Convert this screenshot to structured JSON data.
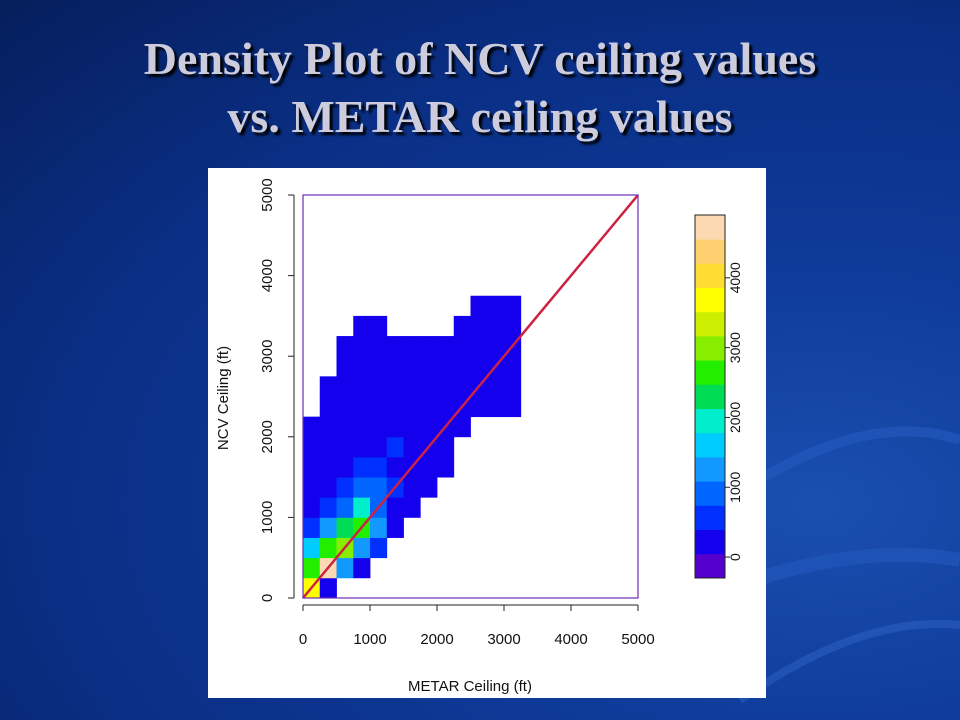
{
  "slide": {
    "title_line1": "Density Plot of NCV ceiling values",
    "title_line2": "vs. METAR ceiling values"
  },
  "chart_data": {
    "type": "heatmap",
    "xlabel": "METAR Ceiling (ft)",
    "ylabel": "NCV Ceiling (ft)",
    "xlim": [
      0,
      5000
    ],
    "ylim": [
      0,
      5000
    ],
    "x_ticks": [
      "0",
      "1000",
      "2000",
      "3000",
      "4000",
      "5000"
    ],
    "y_ticks": [
      "0",
      "1000",
      "2000",
      "3000",
      "4000",
      "5000"
    ],
    "bin_size": 250,
    "reference_line": {
      "from": [
        0,
        0
      ],
      "to": [
        5000,
        5000
      ],
      "color": "#cc2244"
    },
    "colorbar": {
      "ticks": [
        "0",
        "1000",
        "2000",
        "3000",
        "4000"
      ],
      "range": [
        -300,
        4900
      ],
      "colors": [
        "#5500cc",
        "#1500ee",
        "#0030ff",
        "#0066ff",
        "#1199ff",
        "#00ccff",
        "#00eecc",
        "#00dd55",
        "#22ee00",
        "#88ee00",
        "#ccee00",
        "#ffff00",
        "#ffdd33",
        "#ffd070",
        "#fcd9b0"
      ]
    },
    "cells": [
      {
        "x": 0,
        "y": 0,
        "v": 3800
      },
      {
        "x": 250,
        "y": 0,
        "v": 150
      },
      {
        "x": 0,
        "y": 250,
        "v": 2600
      },
      {
        "x": 250,
        "y": 250,
        "v": 4700
      },
      {
        "x": 500,
        "y": 250,
        "v": 1200
      },
      {
        "x": 750,
        "y": 250,
        "v": 50
      },
      {
        "x": 0,
        "y": 500,
        "v": 1500
      },
      {
        "x": 250,
        "y": 500,
        "v": 2700
      },
      {
        "x": 500,
        "y": 500,
        "v": 2900
      },
      {
        "x": 750,
        "y": 500,
        "v": 1300
      },
      {
        "x": 1000,
        "y": 500,
        "v": 500
      },
      {
        "x": 0,
        "y": 750,
        "v": 600
      },
      {
        "x": 250,
        "y": 750,
        "v": 1100
      },
      {
        "x": 500,
        "y": 750,
        "v": 2300
      },
      {
        "x": 750,
        "y": 750,
        "v": 2600
      },
      {
        "x": 1000,
        "y": 750,
        "v": 1100
      },
      {
        "x": 1250,
        "y": 750,
        "v": 300
      },
      {
        "x": 0,
        "y": 1000,
        "v": 250
      },
      {
        "x": 250,
        "y": 1000,
        "v": 700
      },
      {
        "x": 500,
        "y": 1000,
        "v": 1000
      },
      {
        "x": 750,
        "y": 1000,
        "v": 2000
      },
      {
        "x": 1000,
        "y": 1000,
        "v": 800
      },
      {
        "x": 1250,
        "y": 1000,
        "v": 300
      },
      {
        "x": 1500,
        "y": 1000,
        "v": 150
      },
      {
        "x": 0,
        "y": 1250,
        "v": 150
      },
      {
        "x": 250,
        "y": 1250,
        "v": 350
      },
      {
        "x": 500,
        "y": 1250,
        "v": 700
      },
      {
        "x": 750,
        "y": 1250,
        "v": 1000
      },
      {
        "x": 1000,
        "y": 1250,
        "v": 800
      },
      {
        "x": 1250,
        "y": 1250,
        "v": 400
      },
      {
        "x": 1500,
        "y": 1250,
        "v": 150
      },
      {
        "x": 1750,
        "y": 1250,
        "v": 100
      },
      {
        "x": 0,
        "y": 1500,
        "v": 100
      },
      {
        "x": 250,
        "y": 1500,
        "v": 150
      },
      {
        "x": 500,
        "y": 1500,
        "v": 250
      },
      {
        "x": 750,
        "y": 1500,
        "v": 500
      },
      {
        "x": 1000,
        "y": 1500,
        "v": 500
      },
      {
        "x": 1250,
        "y": 1500,
        "v": 350
      },
      {
        "x": 1500,
        "y": 1500,
        "v": 250
      },
      {
        "x": 1750,
        "y": 1500,
        "v": 150
      },
      {
        "x": 2000,
        "y": 1500,
        "v": 100
      },
      {
        "x": 0,
        "y": 1750,
        "v": 50
      },
      {
        "x": 250,
        "y": 1750,
        "v": 100
      },
      {
        "x": 500,
        "y": 1750,
        "v": 200
      },
      {
        "x": 750,
        "y": 1750,
        "v": 250
      },
      {
        "x": 1000,
        "y": 1750,
        "v": 350
      },
      {
        "x": 1250,
        "y": 1750,
        "v": 500
      },
      {
        "x": 1500,
        "y": 1750,
        "v": 300
      },
      {
        "x": 1750,
        "y": 1750,
        "v": 200
      },
      {
        "x": 2000,
        "y": 1750,
        "v": 150
      },
      {
        "x": 0,
        "y": 2000,
        "v": 50
      },
      {
        "x": 250,
        "y": 2000,
        "v": 50
      },
      {
        "x": 500,
        "y": 2000,
        "v": 150
      },
      {
        "x": 750,
        "y": 2000,
        "v": 200
      },
      {
        "x": 1000,
        "y": 2000,
        "v": 250
      },
      {
        "x": 1250,
        "y": 2000,
        "v": 350
      },
      {
        "x": 1500,
        "y": 2000,
        "v": 350
      },
      {
        "x": 1750,
        "y": 2000,
        "v": 150
      },
      {
        "x": 2000,
        "y": 2000,
        "v": 200
      },
      {
        "x": 2250,
        "y": 2000,
        "v": 100
      },
      {
        "x": 250,
        "y": 2250,
        "v": 50
      },
      {
        "x": 500,
        "y": 2250,
        "v": 100
      },
      {
        "x": 750,
        "y": 2250,
        "v": 150
      },
      {
        "x": 1000,
        "y": 2250,
        "v": 200
      },
      {
        "x": 1250,
        "y": 2250,
        "v": 150
      },
      {
        "x": 1500,
        "y": 2250,
        "v": 150
      },
      {
        "x": 1750,
        "y": 2250,
        "v": 200
      },
      {
        "x": 2000,
        "y": 2250,
        "v": 250
      },
      {
        "x": 2250,
        "y": 2250,
        "v": 200
      },
      {
        "x": 2500,
        "y": 2250,
        "v": 100
      },
      {
        "x": 2750,
        "y": 2250,
        "v": 300
      },
      {
        "x": 3000,
        "y": 2250,
        "v": 100
      },
      {
        "x": 250,
        "y": 2500,
        "v": 50
      },
      {
        "x": 500,
        "y": 2500,
        "v": 50
      },
      {
        "x": 750,
        "y": 2500,
        "v": 100
      },
      {
        "x": 1000,
        "y": 2500,
        "v": 100
      },
      {
        "x": 1250,
        "y": 2500,
        "v": 150
      },
      {
        "x": 1500,
        "y": 2500,
        "v": 100
      },
      {
        "x": 1750,
        "y": 2500,
        "v": 150
      },
      {
        "x": 2000,
        "y": 2500,
        "v": 150
      },
      {
        "x": 2250,
        "y": 2500,
        "v": 150
      },
      {
        "x": 2500,
        "y": 2500,
        "v": 300
      },
      {
        "x": 2750,
        "y": 2500,
        "v": 150
      },
      {
        "x": 3000,
        "y": 2500,
        "v": 100
      },
      {
        "x": 500,
        "y": 2750,
        "v": 50
      },
      {
        "x": 750,
        "y": 2750,
        "v": 100
      },
      {
        "x": 1000,
        "y": 2750,
        "v": 50
      },
      {
        "x": 1250,
        "y": 2750,
        "v": 100
      },
      {
        "x": 1500,
        "y": 2750,
        "v": 50
      },
      {
        "x": 1750,
        "y": 2750,
        "v": 100
      },
      {
        "x": 2000,
        "y": 2750,
        "v": 100
      },
      {
        "x": 2250,
        "y": 2750,
        "v": 100
      },
      {
        "x": 2500,
        "y": 2750,
        "v": 150
      },
      {
        "x": 2750,
        "y": 2750,
        "v": 350
      },
      {
        "x": 3000,
        "y": 2750,
        "v": 150
      },
      {
        "x": 500,
        "y": 3000,
        "v": 50
      },
      {
        "x": 750,
        "y": 3000,
        "v": 50
      },
      {
        "x": 1000,
        "y": 3000,
        "v": 50
      },
      {
        "x": 1250,
        "y": 3000,
        "v": 50
      },
      {
        "x": 1500,
        "y": 3000,
        "v": 50
      },
      {
        "x": 1750,
        "y": 3000,
        "v": 50
      },
      {
        "x": 2000,
        "y": 3000,
        "v": 50
      },
      {
        "x": 2250,
        "y": 3000,
        "v": 50
      },
      {
        "x": 2500,
        "y": 3000,
        "v": 50
      },
      {
        "x": 2750,
        "y": 3000,
        "v": 100
      },
      {
        "x": 3000,
        "y": 3000,
        "v": 100
      },
      {
        "x": 750,
        "y": 3250,
        "v": 50
      },
      {
        "x": 1000,
        "y": 3250,
        "v": 50
      },
      {
        "x": 2250,
        "y": 3250,
        "v": 50
      },
      {
        "x": 2500,
        "y": 3250,
        "v": 50
      },
      {
        "x": 2750,
        "y": 3250,
        "v": 50
      },
      {
        "x": 3000,
        "y": 3250,
        "v": 50
      },
      {
        "x": 2500,
        "y": 3500,
        "v": 50
      },
      {
        "x": 2750,
        "y": 3500,
        "v": 50
      },
      {
        "x": 3000,
        "y": 3500,
        "v": 50
      }
    ]
  }
}
